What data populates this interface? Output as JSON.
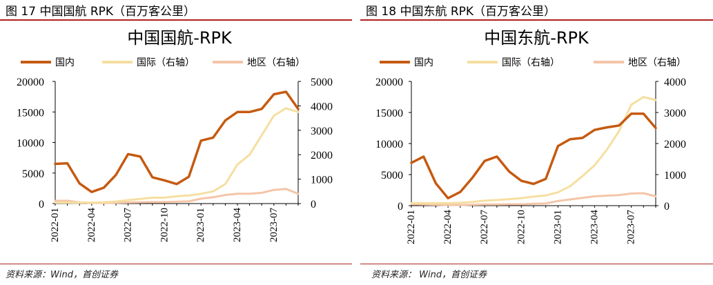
{
  "panels": [
    {
      "fig_label": "图 17 中国国航 RPK（百万客公里）",
      "source": "资料来源：Wind，首创证券"
    },
    {
      "fig_label": "图 18 中国东航 RPK（百万客公里）",
      "source": "资料来源： Wind，首创证券"
    }
  ],
  "chart_data": [
    {
      "type": "line",
      "title": "中国国航-RPK",
      "legend_position": "top",
      "grid": false,
      "x": [
        "2022-01",
        "2022-02",
        "2022-03",
        "2022-04",
        "2022-05",
        "2022-06",
        "2022-07",
        "2022-08",
        "2022-09",
        "2022-10",
        "2022-11",
        "2022-12",
        "2023-01",
        "2023-02",
        "2023-03",
        "2023-04",
        "2023-05",
        "2023-06",
        "2023-07",
        "2023-08",
        "2023-09"
      ],
      "x_tick_labels": [
        "2022-01",
        "2022-04",
        "2022-07",
        "2022-10",
        "2023-01",
        "2023-04",
        "2023-07"
      ],
      "y_left": {
        "ylim": [
          0,
          20000
        ],
        "ticks": [
          "0",
          "5000",
          "10000",
          "15000",
          "20000"
        ]
      },
      "y_right": {
        "ylim": [
          0,
          5000
        ],
        "ticks": [
          "0",
          "1000",
          "2000",
          "3000",
          "4000",
          "5000"
        ]
      },
      "series": [
        {
          "name": "国内",
          "axis": "left",
          "color": "#c55a11",
          "width": 3.5,
          "values": [
            6500,
            6600,
            3300,
            1900,
            2600,
            4700,
            8100,
            7700,
            4300,
            3800,
            3200,
            4400,
            10300,
            10800,
            13600,
            15000,
            15000,
            15500,
            17900,
            18300,
            15500
          ]
        },
        {
          "name": "国际（右轴）",
          "axis": "right",
          "color": "#f5dfa0",
          "width": 3,
          "values": [
            40,
            35,
            30,
            40,
            55,
            85,
            140,
            190,
            240,
            240,
            300,
            330,
            400,
            500,
            800,
            1600,
            2000,
            2800,
            3600,
            3900,
            3750
          ]
        },
        {
          "name": "地区（右轴）",
          "axis": "right",
          "color": "#f4c5a8",
          "width": 3,
          "values": [
            110,
            115,
            50,
            25,
            25,
            30,
            45,
            55,
            60,
            60,
            80,
            90,
            200,
            260,
            350,
            400,
            400,
            440,
            560,
            600,
            400
          ]
        }
      ]
    },
    {
      "type": "line",
      "title": "中国东航-RPK",
      "legend_position": "top",
      "grid": false,
      "x": [
        "2022-01",
        "2022-02",
        "2022-03",
        "2022-04",
        "2022-05",
        "2022-06",
        "2022-07",
        "2022-08",
        "2022-09",
        "2022-10",
        "2022-11",
        "2022-12",
        "2023-01",
        "2023-02",
        "2023-03",
        "2023-04",
        "2023-05",
        "2023-06",
        "2023-07",
        "2023-08",
        "2023-09"
      ],
      "x_tick_labels": [
        "2022-01",
        "2022-04",
        "2022-07",
        "2022-10",
        "2023-01",
        "2023-04",
        "2023-07"
      ],
      "y_left": {
        "ylim": [
          0,
          20000
        ],
        "ticks": [
          "0",
          "5000",
          "10000",
          "15000",
          "20000"
        ]
      },
      "y_right": {
        "ylim": [
          0,
          4000
        ],
        "ticks": [
          "0",
          "1000",
          "2000",
          "3000",
          "4000"
        ]
      },
      "series": [
        {
          "name": "国内",
          "axis": "left",
          "color": "#c55a11",
          "width": 3.5,
          "values": [
            6900,
            7900,
            3600,
            1200,
            2200,
            4500,
            7200,
            7900,
            5500,
            4000,
            3500,
            4300,
            9600,
            10700,
            10900,
            12200,
            12600,
            12900,
            14800,
            14800,
            12500
          ]
        },
        {
          "name": "国际（右轴）",
          "axis": "right",
          "color": "#f5dfa0",
          "width": 3,
          "values": [
            80,
            80,
            80,
            80,
            90,
            120,
            160,
            180,
            210,
            240,
            290,
            330,
            430,
            630,
            950,
            1300,
            1800,
            2400,
            3250,
            3500,
            3400
          ]
        },
        {
          "name": "地区（右轴）",
          "axis": "right",
          "color": "#f4c5a8",
          "width": 3,
          "values": [
            50,
            40,
            30,
            20,
            20,
            30,
            40,
            40,
            45,
            45,
            60,
            70,
            150,
            200,
            250,
            300,
            320,
            340,
            390,
            400,
            300
          ]
        }
      ]
    }
  ]
}
